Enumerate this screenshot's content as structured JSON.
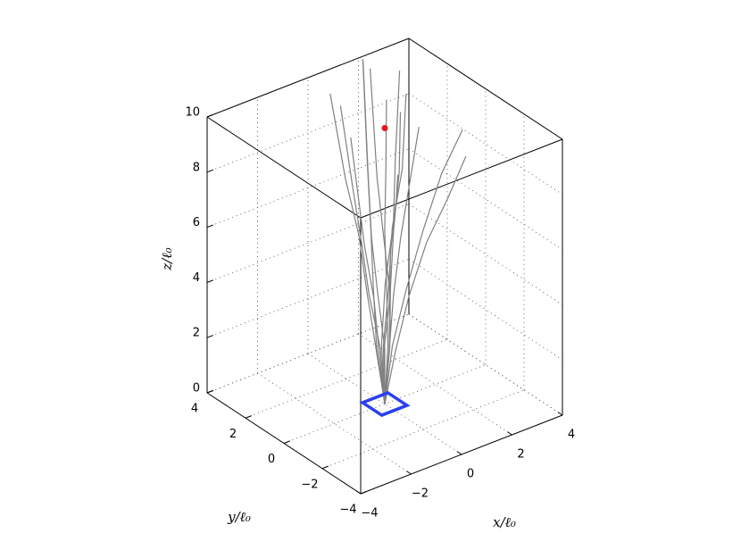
{
  "chart_data": {
    "type": "line3d",
    "xlabel": "x/ℓ₀",
    "ylabel": "y/ℓ₀",
    "zlabel": "z/ℓ₀",
    "xlim": [
      -4,
      4
    ],
    "ylim": [
      -4,
      4
    ],
    "zlim": [
      0,
      10
    ],
    "xticks": [
      {
        "value": -4,
        "label": "−4"
      },
      {
        "value": -2,
        "label": "−2"
      },
      0,
      2,
      4
    ],
    "yticks": [
      {
        "value": -4,
        "label": "−4"
      },
      {
        "value": -2,
        "label": "−2"
      },
      0,
      2,
      4
    ],
    "zticks": [
      0,
      2,
      4,
      6,
      8,
      10
    ],
    "grid": true,
    "line_color": "#808080",
    "trajectories": [
      {
        "x": [
          0,
          0.1,
          0.2,
          0.4,
          0.6,
          0.9
        ],
        "y": [
          0,
          -0.1,
          -0.2,
          -0.3,
          -0.5,
          -0.6
        ],
        "z": [
          0,
          2,
          4,
          6,
          8,
          10
        ]
      },
      {
        "x": [
          0,
          -0.2,
          -0.4,
          -0.5,
          -0.8,
          -1.1
        ],
        "y": [
          0,
          0.2,
          0.4,
          0.7,
          1.0,
          1.4
        ],
        "z": [
          0,
          2,
          4,
          6,
          8,
          11
        ]
      },
      {
        "x": [
          0,
          0.3,
          0.7,
          1.2,
          1.8,
          2.4
        ],
        "y": [
          0,
          0,
          -0.2,
          -0.4,
          -0.6,
          -0.9
        ],
        "z": [
          0,
          2,
          4,
          6,
          8,
          9.5
        ]
      },
      {
        "x": [
          0,
          -0.1,
          0,
          0.2,
          0.3,
          0.5
        ],
        "y": [
          0,
          0.3,
          0.6,
          1.0,
          1.3,
          1.8
        ],
        "z": [
          0,
          2,
          4,
          6,
          8,
          11.5
        ]
      },
      {
        "x": [
          0,
          0.2,
          0.3,
          0.3,
          0.5,
          0.6
        ],
        "y": [
          0,
          0.1,
          0.3,
          0.4,
          0.6,
          0.7
        ],
        "z": [
          0,
          2,
          4,
          6,
          8,
          10.5
        ]
      },
      {
        "x": [
          0,
          -0.3,
          -0.5,
          -0.8,
          -1.0,
          -1.2
        ],
        "y": [
          0,
          -0.1,
          -0.1,
          0,
          0.1,
          0.2
        ],
        "z": [
          0,
          2,
          4,
          6,
          8,
          10
        ]
      },
      {
        "x": [
          0,
          0.1,
          0.4,
          0.8,
          1.1,
          1.5
        ],
        "y": [
          0,
          0.3,
          0.5,
          0.6,
          0.9,
          1.2
        ],
        "z": [
          0,
          2,
          4,
          6,
          8,
          11
        ]
      },
      {
        "x": [
          0,
          -0.2,
          -0.2,
          -0.3,
          -0.3,
          -0.4
        ],
        "y": [
          0,
          -0.2,
          -0.5,
          -0.7,
          -1.0,
          -1.2
        ],
        "z": [
          0,
          2,
          4,
          6,
          8,
          9
        ]
      },
      {
        "x": [
          0,
          0.2,
          0.5,
          0.9,
          1.5,
          2.0
        ],
        "y": [
          0,
          -0.3,
          -0.6,
          -1.0,
          -1.3,
          -1.6
        ],
        "z": [
          0,
          2,
          4,
          6,
          7.5,
          9
        ]
      },
      {
        "x": [
          0,
          0,
          -0.2,
          -0.3,
          -0.2,
          -0.1
        ],
        "y": [
          0,
          0,
          0.1,
          0.3,
          0.6,
          1.0
        ],
        "z": [
          0,
          2,
          4,
          6,
          8,
          12
        ]
      },
      {
        "x": [
          0,
          0.1,
          0.2,
          0.1,
          0,
          -0.2
        ],
        "y": [
          0,
          -0.1,
          0,
          0.2,
          0.4,
          0.5
        ],
        "z": [
          0,
          2,
          4,
          6,
          8,
          12
        ]
      },
      {
        "x": [
          0,
          -0.1,
          -0.4,
          -0.7,
          -0.9,
          -1.3
        ],
        "y": [
          0,
          0.1,
          0.3,
          0.3,
          0.5,
          0.6
        ],
        "z": [
          0,
          2,
          4,
          6,
          8,
          11
        ]
      },
      {
        "x": [
          0,
          0.2,
          0.3,
          0.5,
          0.8,
          1.0
        ],
        "y": [
          0,
          0,
          0.1,
          0.2,
          0.3,
          0.5
        ],
        "z": [
          0,
          2,
          4,
          6,
          8,
          10
        ]
      },
      {
        "x": [
          0,
          0.1,
          0.3,
          0.6,
          1.0,
          1.3
        ],
        "y": [
          0,
          0.2,
          0.2,
          0.4,
          0.4,
          0.6
        ],
        "z": [
          0,
          2,
          4,
          6,
          8,
          10.5
        ]
      }
    ],
    "source_box": {
      "xlim": [
        -0.5,
        0.5
      ],
      "ylim": [
        -0.5,
        0.5
      ],
      "z": 0,
      "color": "#2a3ff0"
    },
    "target": {
      "x": 0,
      "y": 0,
      "z": 10,
      "color": "#e8141c"
    }
  }
}
